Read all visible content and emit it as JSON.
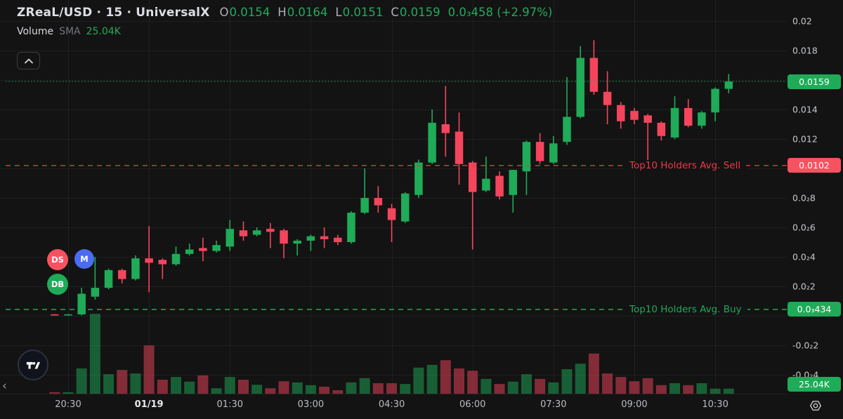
{
  "header": {
    "symbol_title": "ZReaL/USD · 15 · UniversalX",
    "ohlc": {
      "o_label": "O",
      "o": "0.0154",
      "h_label": "H",
      "h": "0.0164",
      "l_label": "L",
      "l": "0.0151",
      "c_label": "C",
      "c": "0.0159",
      "change": "0.0₃458 (+2.97%)"
    },
    "indicator": {
      "name": "Volume",
      "param": "SMA",
      "value": "25.04K"
    }
  },
  "markers": [
    {
      "label": "DS",
      "color": "#f7525f"
    },
    {
      "label": "M",
      "color": "#4a6cf3"
    },
    {
      "label": "DB",
      "color": "#1fab58"
    }
  ],
  "levels": {
    "current": {
      "price": "0.0159",
      "value": 0.0159
    },
    "sell": {
      "label": "Top10 Holders Avg. Sell",
      "price": "0.0102",
      "value": 0.0102
    },
    "buy": {
      "label": "Top10 Holders Avg. Buy",
      "price": "0.0₃434",
      "value": 0.000434
    },
    "volume_badge": "25.04K"
  },
  "price_axis": {
    "ticks": [
      {
        "label": "0.02",
        "value": 0.02
      },
      {
        "label": "0.018",
        "value": 0.018
      },
      {
        "label": "0.014",
        "value": 0.014
      },
      {
        "label": "0.012",
        "value": 0.012
      },
      {
        "label": "0.0₂8",
        "value": 0.008
      },
      {
        "label": "0.0₂6",
        "value": 0.006
      },
      {
        "label": "0.0₂4",
        "value": 0.004
      },
      {
        "label": "0.0₂2",
        "value": 0.002
      },
      {
        "label": "-0.0₂2",
        "value": -0.002
      },
      {
        "label": "-0.0₂4",
        "value": -0.004
      }
    ]
  },
  "time_axis": {
    "ticks": [
      {
        "label": "20:30",
        "bar": 1
      },
      {
        "label": "01/19",
        "bar": 7,
        "bold": true
      },
      {
        "label": "01:30",
        "bar": 13
      },
      {
        "label": "03:00",
        "bar": 19
      },
      {
        "label": "04:30",
        "bar": 25
      },
      {
        "label": "06:00",
        "bar": 31
      },
      {
        "label": "07:30",
        "bar": 37
      },
      {
        "label": "09:00",
        "bar": 43
      },
      {
        "label": "10:30",
        "bar": 49
      }
    ]
  },
  "chart_data": {
    "type": "candlestick_with_volume",
    "symbol": "ZReaL/USD",
    "interval": "15m",
    "venue": "UniversalX",
    "price_range_shown": [
      -0.004,
      0.02
    ],
    "grid": true,
    "grid_prices": [
      0.02,
      0.018,
      0.016,
      0.014,
      0.012,
      0.01,
      0.008,
      0.006,
      0.004,
      0.002,
      0,
      -0.002,
      -0.004
    ],
    "volume_unit": "K",
    "volume_sma": "25.04K",
    "last_close": 0.0159,
    "top10_avg_sell": 0.0102,
    "top10_avg_buy": 0.000434,
    "candles_format": [
      "open",
      "high",
      "low",
      "close",
      "volume_K"
    ],
    "candles": [
      [
        0.0001,
        0.00012,
        3e-05,
        5e-05,
        4
      ],
      [
        5e-05,
        0.00012,
        3e-05,
        0.0001,
        4
      ],
      [
        0.0001,
        0.0019,
        3e-05,
        0.0015,
        65
      ],
      [
        0.0013,
        0.004,
        0.0011,
        0.0019,
        205
      ],
      [
        0.0019,
        0.0032,
        0.0018,
        0.0031,
        50
      ],
      [
        0.0031,
        0.0032,
        0.0022,
        0.0025,
        61
      ],
      [
        0.0025,
        0.0041,
        0.0024,
        0.0039,
        52
      ],
      [
        0.0039,
        0.0061,
        0.0016,
        0.0036,
        124
      ],
      [
        0.0038,
        0.0039,
        0.0025,
        0.0035,
        36
      ],
      [
        0.0035,
        0.0047,
        0.0034,
        0.0042,
        43
      ],
      [
        0.0042,
        0.0049,
        0.0041,
        0.0045,
        31
      ],
      [
        0.0046,
        0.0053,
        0.0037,
        0.0044,
        47
      ],
      [
        0.0044,
        0.0051,
        0.0043,
        0.0048,
        14
      ],
      [
        0.0047,
        0.0065,
        0.0044,
        0.0059,
        43
      ],
      [
        0.0058,
        0.0064,
        0.0051,
        0.0054,
        36
      ],
      [
        0.0055,
        0.006,
        0.0054,
        0.0058,
        23
      ],
      [
        0.0059,
        0.0063,
        0.0046,
        0.0057,
        14
      ],
      [
        0.0058,
        0.0059,
        0.0039,
        0.0049,
        32
      ],
      [
        0.0049,
        0.0052,
        0.0041,
        0.0051,
        29
      ],
      [
        0.0051,
        0.0055,
        0.0044,
        0.0054,
        22
      ],
      [
        0.0054,
        0.006,
        0.0046,
        0.0052,
        18
      ],
      [
        0.0053,
        0.0055,
        0.0048,
        0.005,
        9
      ],
      [
        0.005,
        0.0071,
        0.0049,
        0.007,
        29
      ],
      [
        0.007,
        0.01,
        0.0069,
        0.008,
        40
      ],
      [
        0.008,
        0.0088,
        0.007,
        0.0075,
        27
      ],
      [
        0.0073,
        0.0076,
        0.005,
        0.0065,
        27
      ],
      [
        0.0064,
        0.0084,
        0.0063,
        0.0083,
        25
      ],
      [
        0.0082,
        0.0106,
        0.008,
        0.0104,
        67
      ],
      [
        0.0104,
        0.014,
        0.0103,
        0.0131,
        74
      ],
      [
        0.013,
        0.0156,
        0.0108,
        0.0124,
        86
      ],
      [
        0.0125,
        0.0138,
        0.0089,
        0.0103,
        65
      ],
      [
        0.0104,
        0.0105,
        0.0045,
        0.0084,
        59
      ],
      [
        0.0085,
        0.0108,
        0.0084,
        0.0093,
        38
      ],
      [
        0.0095,
        0.0098,
        0.0079,
        0.0081,
        25
      ],
      [
        0.0082,
        0.0099,
        0.007,
        0.0099,
        31
      ],
      [
        0.0098,
        0.0119,
        0.0082,
        0.0118,
        50
      ],
      [
        0.0118,
        0.0124,
        0.0103,
        0.0105,
        38
      ],
      [
        0.0104,
        0.0122,
        0.0103,
        0.0117,
        29
      ],
      [
        0.0118,
        0.0162,
        0.0116,
        0.0135,
        63
      ],
      [
        0.0135,
        0.0183,
        0.0134,
        0.0175,
        77
      ],
      [
        0.0175,
        0.0187,
        0.015,
        0.0152,
        103
      ],
      [
        0.0152,
        0.0166,
        0.013,
        0.0143,
        52
      ],
      [
        0.0143,
        0.0145,
        0.0127,
        0.0132,
        43
      ],
      [
        0.0139,
        0.0141,
        0.013,
        0.0133,
        32
      ],
      [
        0.0136,
        0.0137,
        0.0105,
        0.0131,
        40
      ],
      [
        0.0131,
        0.0132,
        0.0119,
        0.0122,
        22
      ],
      [
        0.0121,
        0.0149,
        0.012,
        0.0141,
        27
      ],
      [
        0.0141,
        0.0147,
        0.0128,
        0.0129,
        22
      ],
      [
        0.0129,
        0.0139,
        0.0127,
        0.0138,
        27
      ],
      [
        0.0138,
        0.0155,
        0.0132,
        0.0154,
        13
      ],
      [
        0.0154,
        0.0164,
        0.0151,
        0.0159,
        13
      ]
    ]
  },
  "colors": {
    "up": "#1fab58",
    "down": "#f4455d",
    "sell_line": "#f23645",
    "sell_badge": "#f7525f",
    "buy_badge": "#1fab58",
    "current_badge": "#1fab58",
    "background": "#131313"
  },
  "chrome": {
    "collapse_button": "collapse legend",
    "settings_button": "chart settings",
    "left_chevron": "‹"
  }
}
